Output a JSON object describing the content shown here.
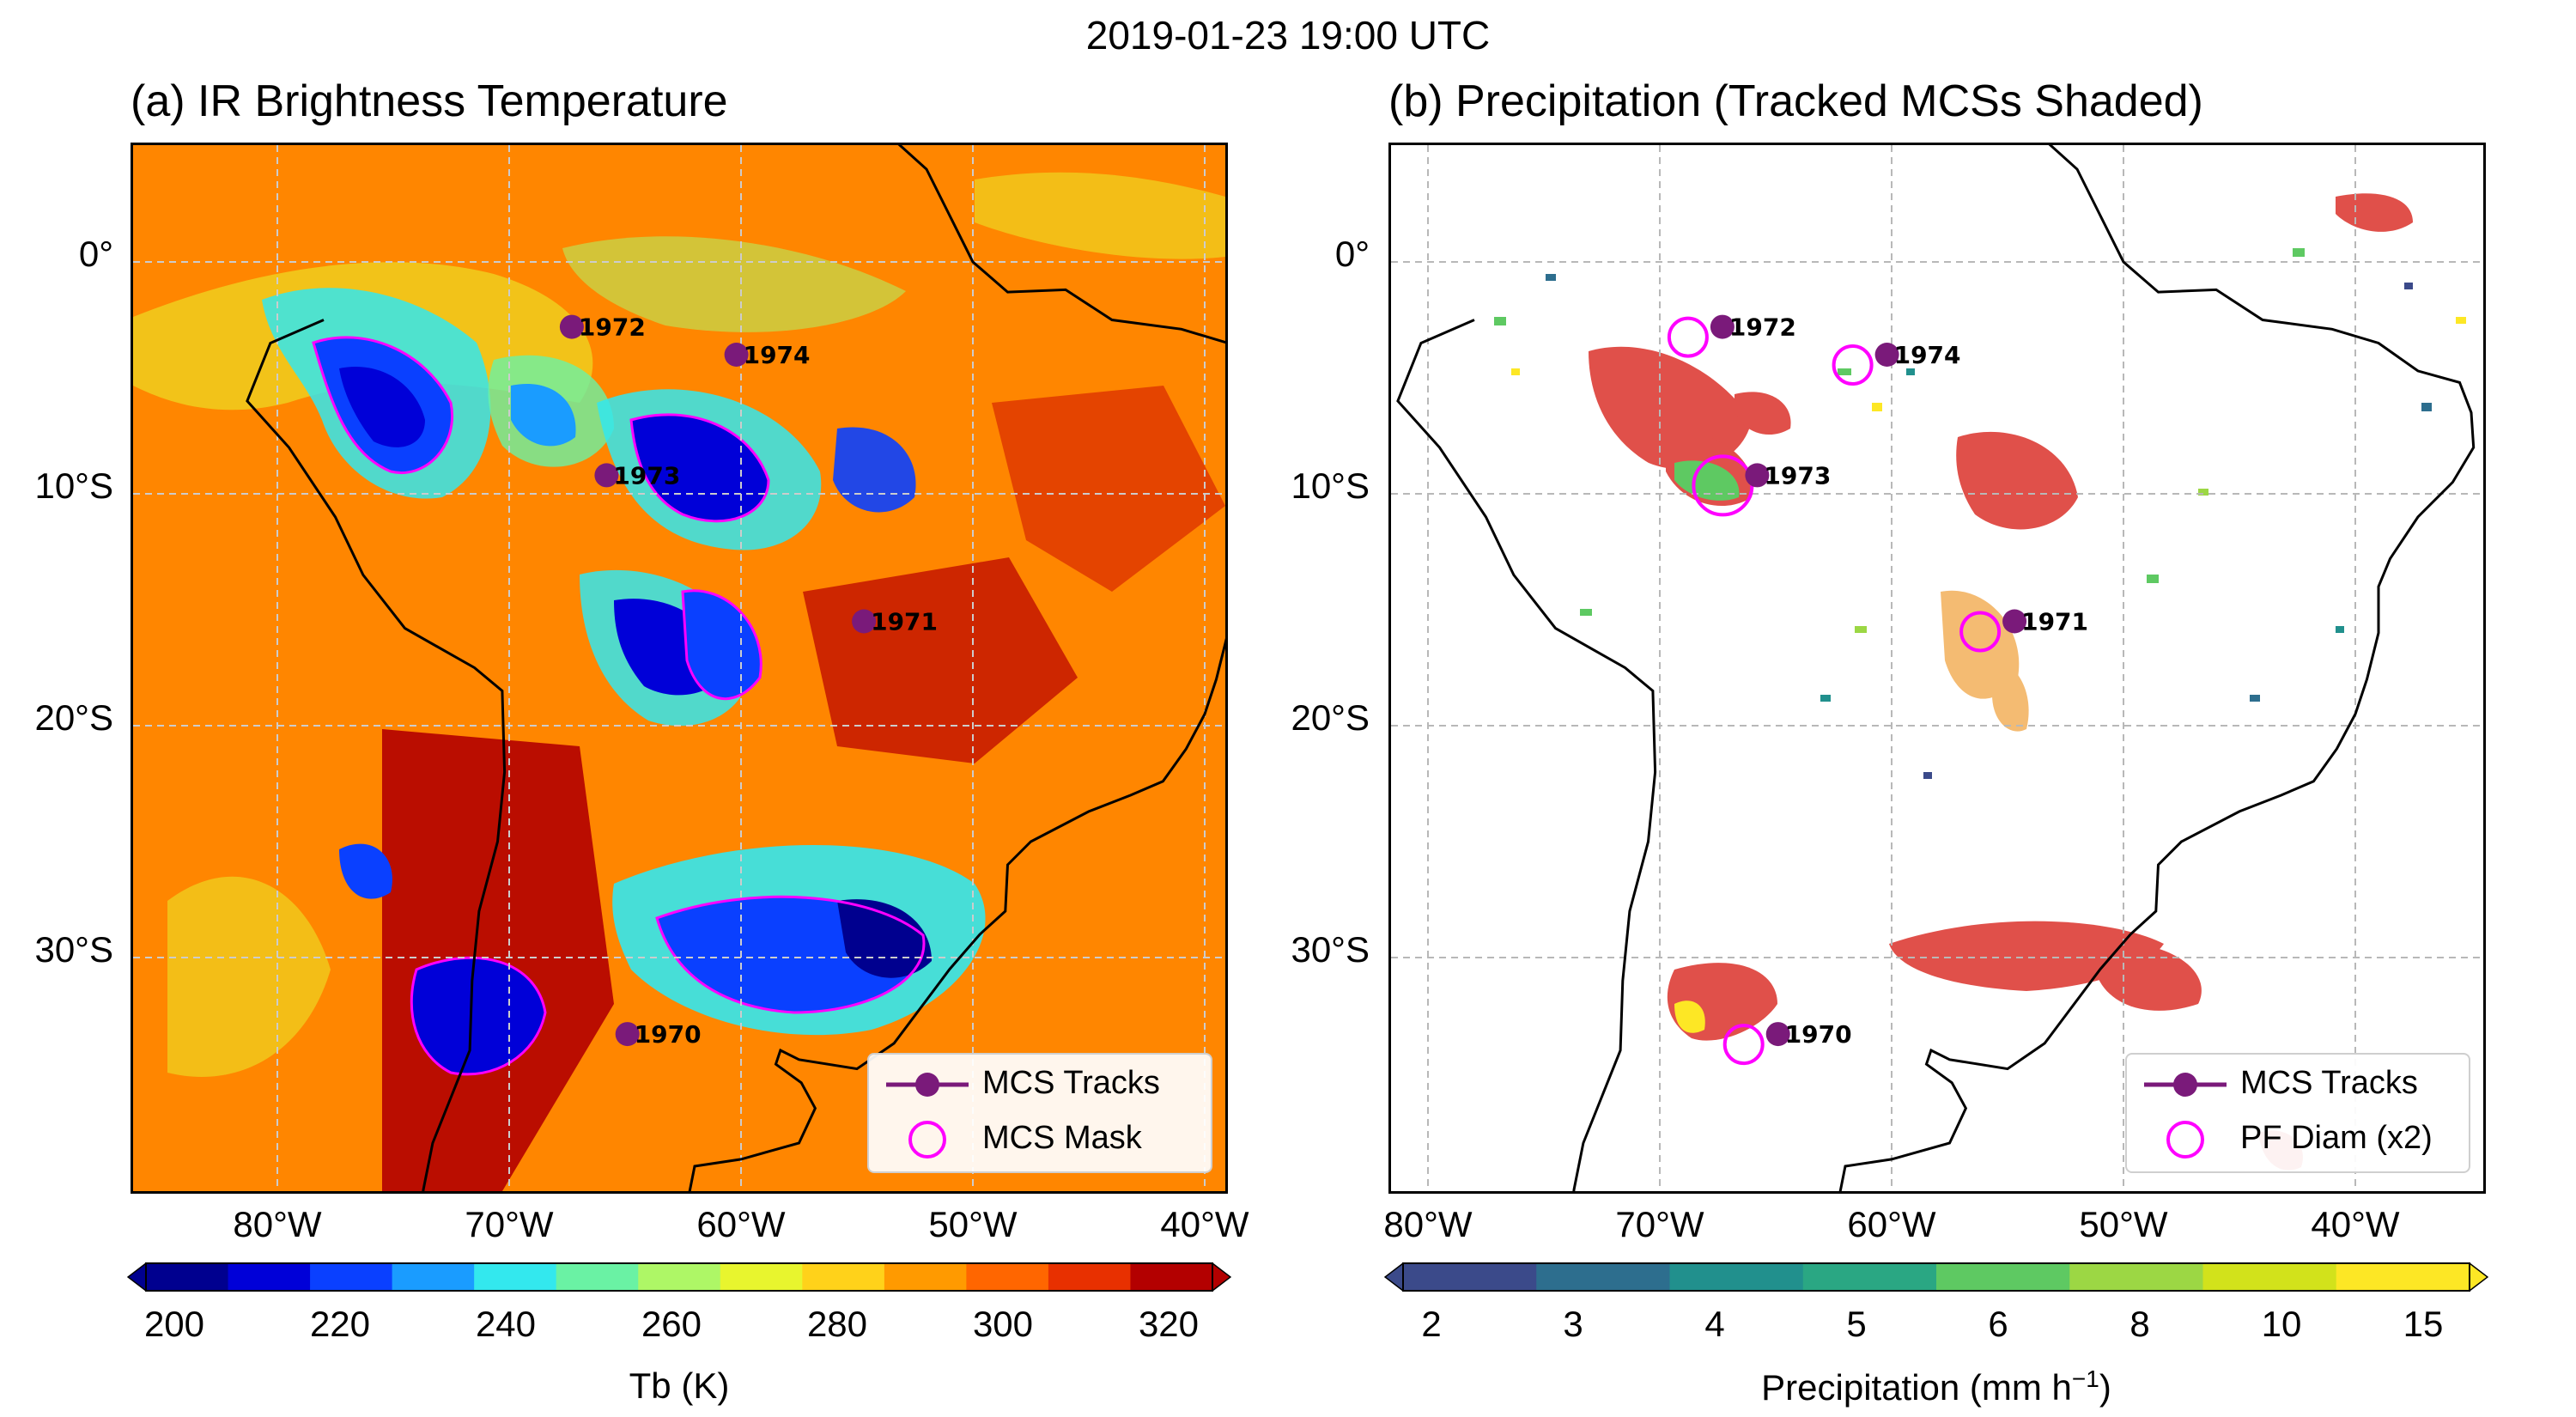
{
  "figure": {
    "suptitle": "2019-01-23 19:00 UTC"
  },
  "panel_a": {
    "title": "(a) IR Brightness Temperature",
    "legend": {
      "track_label": "MCS Tracks",
      "mask_label": "MCS Mask"
    },
    "colorbar": {
      "label": "Tb (K)",
      "ticks": [
        "200",
        "220",
        "240",
        "260",
        "280",
        "300",
        "320"
      ],
      "colors": [
        "#00008f",
        "#0000d8",
        "#0a40ff",
        "#1a9cff",
        "#33e8ee",
        "#6af2a4",
        "#aef766",
        "#e8f52e",
        "#ffd21a",
        "#ff9a00",
        "#ff6600",
        "#e83000",
        "#b30000"
      ]
    }
  },
  "panel_b": {
    "title": "(b) Precipitation (Tracked MCSs Shaded)",
    "legend": {
      "track_label": "MCS Tracks",
      "pf_label": "PF Diam (x2)"
    },
    "colorbar": {
      "label": "Precipitation (mm h",
      "label_sup": "−1",
      "label_end": ")",
      "ticks": [
        "2",
        "3",
        "4",
        "5",
        "6",
        "8",
        "10",
        "15"
      ],
      "colors": [
        "#3b4a8a",
        "#2d6e8e",
        "#21908d",
        "#2aa783",
        "#5ec962",
        "#9cd744",
        "#d2e21b",
        "#fde725"
      ]
    }
  },
  "axes": {
    "lon_ticks": [
      "80°W",
      "70°W",
      "60°W",
      "50°W",
      "40°W"
    ],
    "lat_ticks": [
      "0°",
      "10°S",
      "20°S",
      "30°S"
    ]
  },
  "mcs_tracks": [
    {
      "id": "1972",
      "lon": -67.3,
      "lat": -2.8
    },
    {
      "id": "1974",
      "lon": -60.2,
      "lat": -4.0
    },
    {
      "id": "1973",
      "lon": -65.8,
      "lat": -9.2
    },
    {
      "id": "1971",
      "lon": -54.7,
      "lat": -15.5
    },
    {
      "id": "1970",
      "lon": -64.9,
      "lat": -33.3
    }
  ],
  "colors": {
    "track": "#7a1a7a",
    "mask": "#ff00ff",
    "mcs_shade": "#e0504a",
    "mcs_shade_light": "#f4bb72"
  }
}
